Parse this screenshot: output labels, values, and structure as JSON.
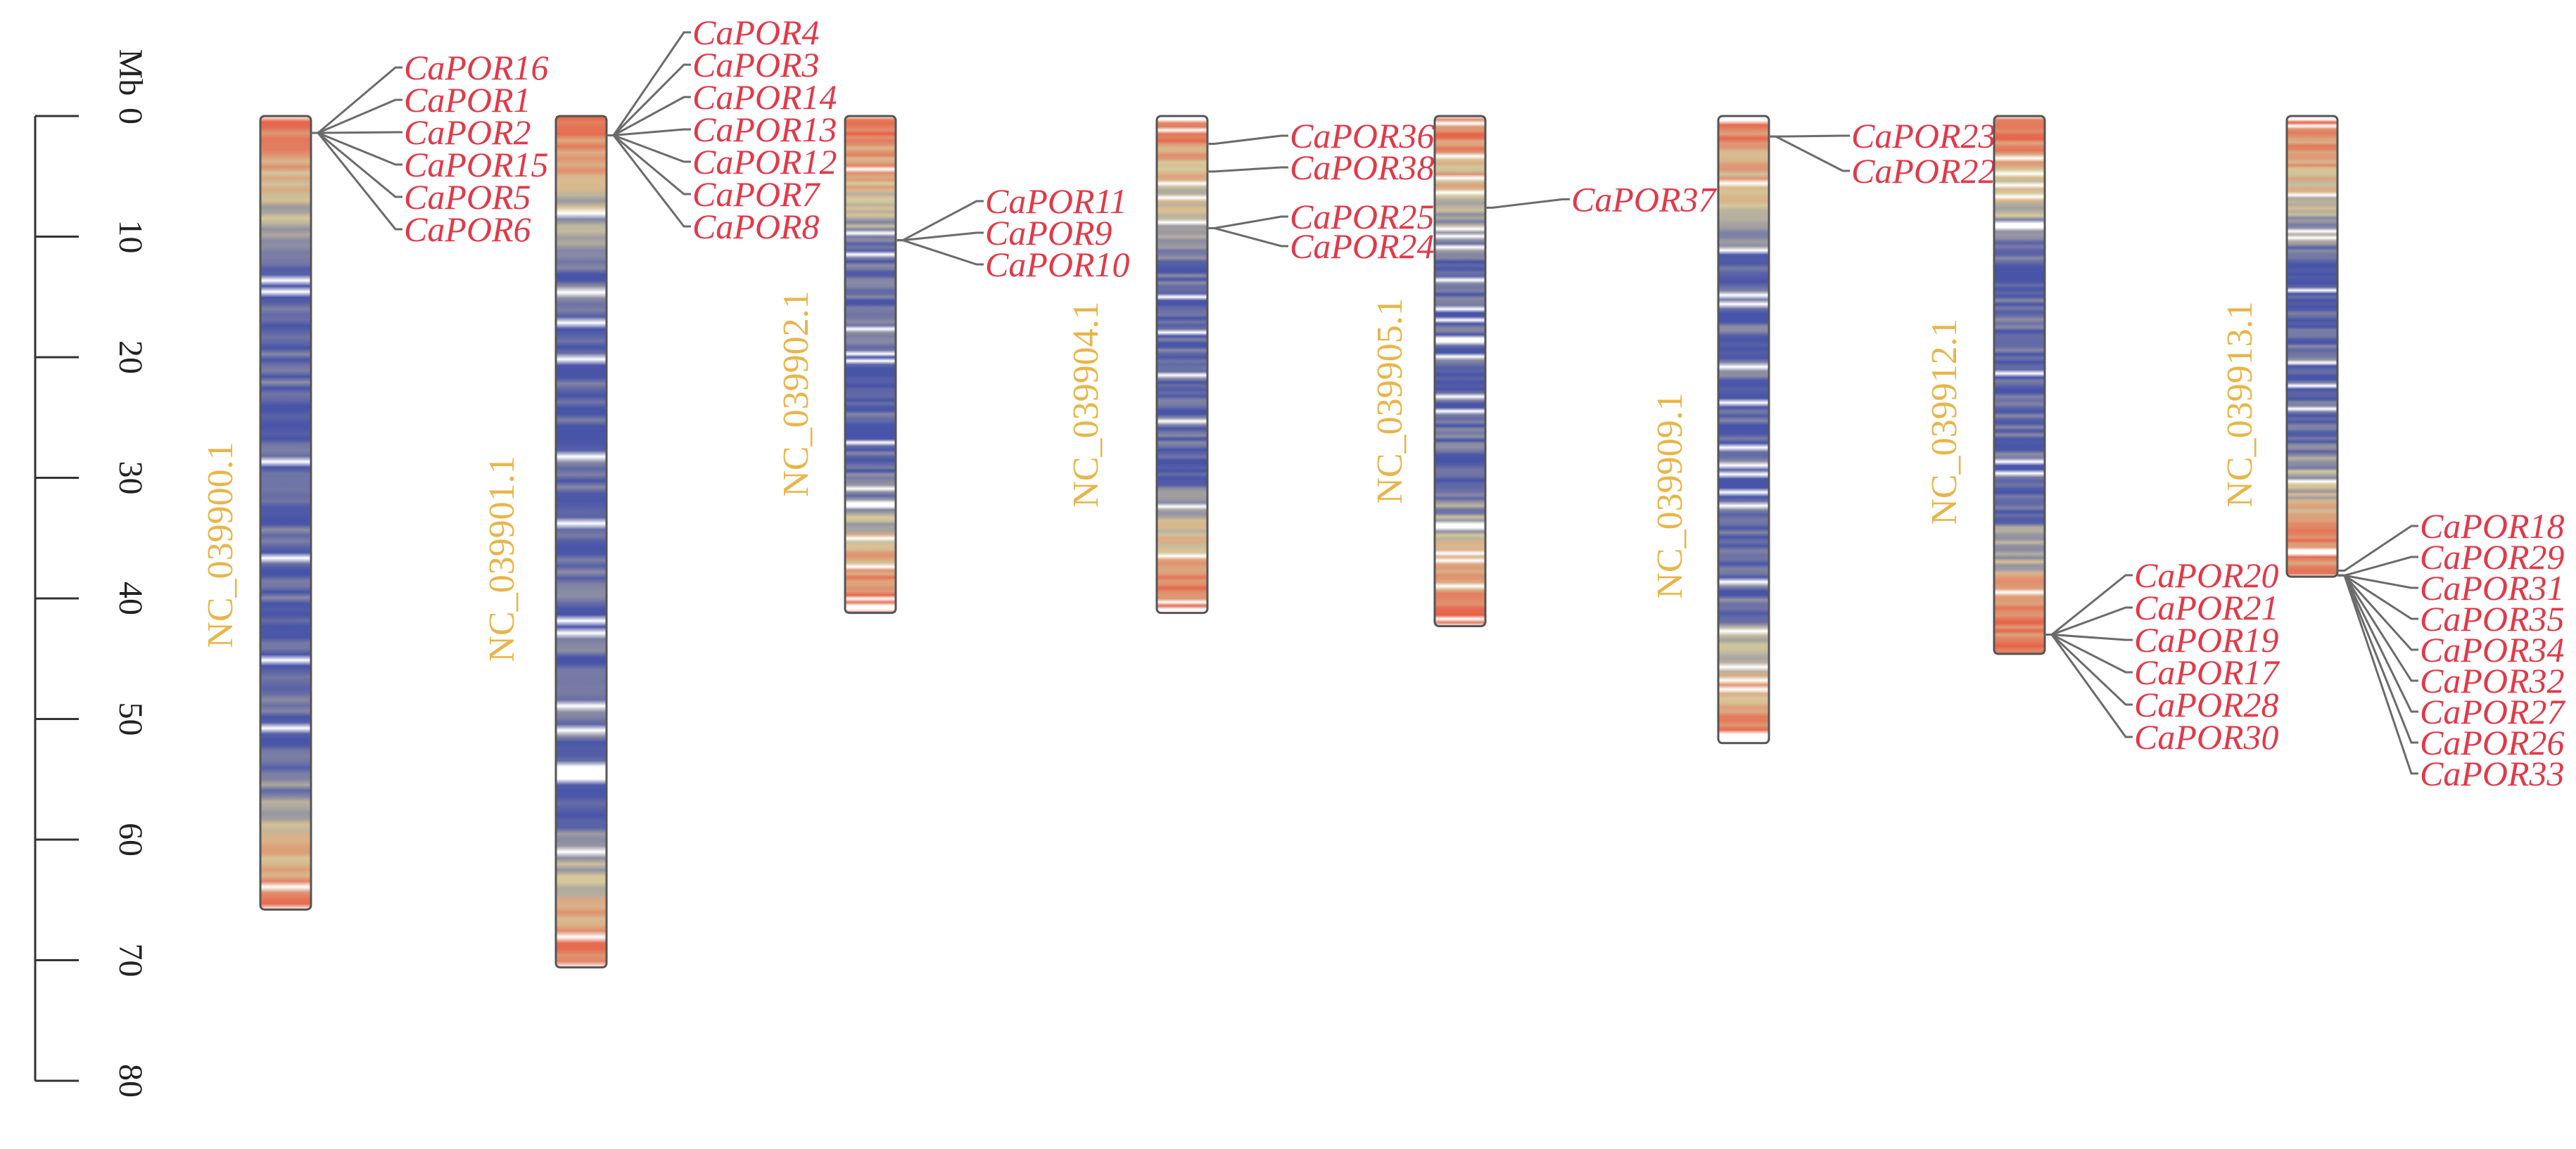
{
  "scale": {
    "unit": "Mb",
    "ticks": [
      0,
      10,
      20,
      30,
      40,
      50,
      60,
      70,
      80
    ],
    "max": 80
  },
  "colors": {
    "gene_label": "#e03a4a",
    "chromosome_label": "#e8b54a",
    "density_high": "#e8573f",
    "density_mid": "#d8c89a",
    "density_low": "#4a55a8"
  },
  "chromosomes": [
    {
      "name": "NC_039900.1",
      "length": 65.8,
      "genes": [
        {
          "name": "CaPOR16",
          "position": 1.4
        },
        {
          "name": "CaPOR1",
          "position": 1.4
        },
        {
          "name": "CaPOR2",
          "position": 1.4
        },
        {
          "name": "CaPOR15",
          "position": 1.4
        },
        {
          "name": "CaPOR5",
          "position": 1.4
        },
        {
          "name": "CaPOR6",
          "position": 1.4
        }
      ]
    },
    {
      "name": "NC_039901.1",
      "length": 70.6,
      "genes": [
        {
          "name": "CaPOR4",
          "position": 1.6
        },
        {
          "name": "CaPOR3",
          "position": 1.6
        },
        {
          "name": "CaPOR14",
          "position": 1.6
        },
        {
          "name": "CaPOR13",
          "position": 1.6
        },
        {
          "name": "CaPOR12",
          "position": 1.6
        },
        {
          "name": "CaPOR7",
          "position": 1.6
        },
        {
          "name": "CaPOR8",
          "position": 1.6
        }
      ]
    },
    {
      "name": "NC_039902.1",
      "length": 41.2,
      "genes": [
        {
          "name": "CaPOR11",
          "position": 10.3
        },
        {
          "name": "CaPOR9",
          "position": 10.3
        },
        {
          "name": "CaPOR10",
          "position": 10.3
        }
      ]
    },
    {
      "name": "NC_039904.1",
      "length": 41.2,
      "genes": [
        {
          "name": "CaPOR36",
          "position": 2.3
        },
        {
          "name": "CaPOR38",
          "position": 4.6
        },
        {
          "name": "CaPOR25",
          "position": 9.3
        },
        {
          "name": "CaPOR24",
          "position": 9.3
        }
      ]
    },
    {
      "name": "NC_039905.1",
      "length": 42.3,
      "genes": [
        {
          "name": "CaPOR37",
          "position": 7.6
        }
      ]
    },
    {
      "name": "NC_039909.1",
      "length": 52.0,
      "genes": [
        {
          "name": "CaPOR23",
          "position": 1.7
        },
        {
          "name": "CaPOR22",
          "position": 1.7
        }
      ]
    },
    {
      "name": "NC_039912.1",
      "length": 44.6,
      "genes": [
        {
          "name": "CaPOR20",
          "position": 43.0
        },
        {
          "name": "CaPOR21",
          "position": 43.0
        },
        {
          "name": "CaPOR19",
          "position": 43.0
        },
        {
          "name": "CaPOR17",
          "position": 43.0
        },
        {
          "name": "CaPOR28",
          "position": 43.0
        },
        {
          "name": "CaPOR30",
          "position": 43.0
        }
      ]
    },
    {
      "name": "NC_039913.1",
      "length": 38.2,
      "genes": [
        {
          "name": "CaPOR18",
          "position": 37.7
        },
        {
          "name": "CaPOR29",
          "position": 38.1
        },
        {
          "name": "CaPOR31",
          "position": 38.1
        },
        {
          "name": "CaPOR35",
          "position": 38.1
        },
        {
          "name": "CaPOR34",
          "position": 38.1
        },
        {
          "name": "CaPOR32",
          "position": 38.1
        },
        {
          "name": "CaPOR27",
          "position": 38.1
        },
        {
          "name": "CaPOR26",
          "position": 38.1
        },
        {
          "name": "CaPOR33",
          "position": 38.1
        }
      ]
    }
  ]
}
